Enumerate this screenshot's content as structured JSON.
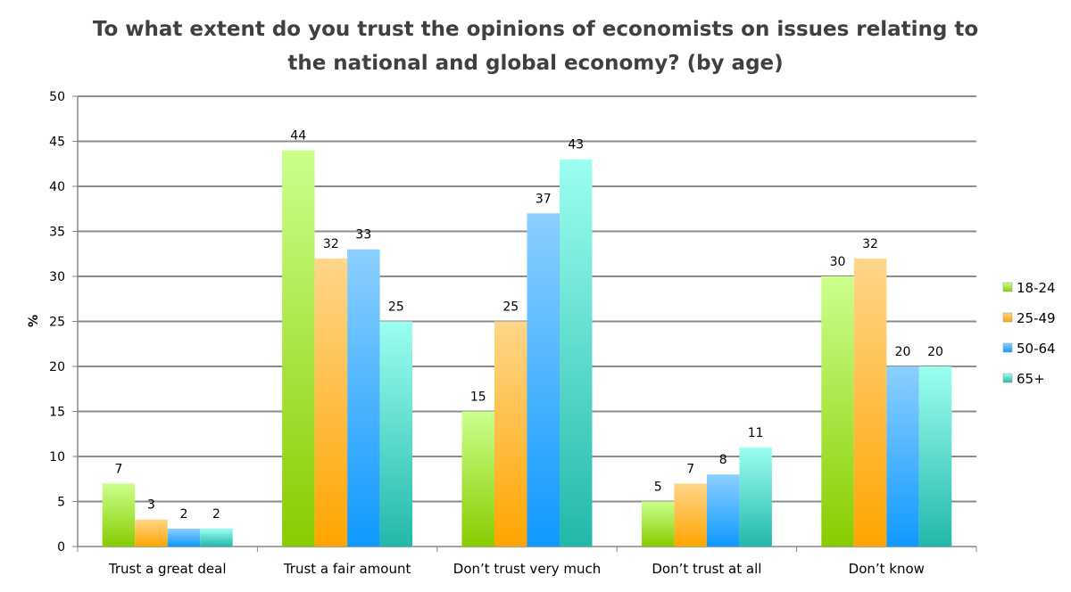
{
  "chart_data": {
    "type": "bar",
    "title_lines": [
      "To what extent do you trust the opinions of economists on issues relating to",
      "the national and global economy? (by age)"
    ],
    "xlabel": "",
    "ylabel": "%",
    "ylim": [
      0,
      50
    ],
    "yticks": [
      0,
      5,
      10,
      15,
      20,
      25,
      30,
      35,
      40,
      45,
      50
    ],
    "grid": true,
    "legend_position": "right",
    "categories": [
      "Trust a great deal",
      "Trust a fair amount",
      "Don’t trust very much",
      "Don’t trust at all",
      "Don’t know"
    ],
    "series": [
      {
        "name": "18-24",
        "values": [
          7,
          44,
          15,
          5,
          30
        ],
        "color_top": "#ccff8c",
        "color_bottom": "#88cc00"
      },
      {
        "name": "25-49",
        "values": [
          3,
          32,
          25,
          7,
          32
        ],
        "color_top": "#ffd68a",
        "color_bottom": "#ffa500"
      },
      {
        "name": "50-64",
        "values": [
          2,
          33,
          37,
          8,
          20
        ],
        "color_top": "#8ccfff",
        "color_bottom": "#0f99ff"
      },
      {
        "name": "65+",
        "values": [
          2,
          25,
          43,
          11,
          20
        ],
        "color_top": "#9cfff0",
        "color_bottom": "#22b8aa"
      }
    ]
  }
}
